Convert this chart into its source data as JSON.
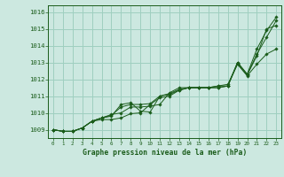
{
  "bg_color": "#cce8e0",
  "grid_color": "#9fcfc0",
  "line_color": "#1a5c1a",
  "xlabel": "Graphe pression niveau de la mer (hPa)",
  "xlim": [
    -0.5,
    23.5
  ],
  "ylim": [
    1008.5,
    1016.4
  ],
  "yticks": [
    1009,
    1010,
    1011,
    1012,
    1013,
    1014,
    1015,
    1016
  ],
  "xticks": [
    0,
    1,
    2,
    3,
    4,
    5,
    6,
    7,
    8,
    9,
    10,
    11,
    12,
    13,
    14,
    15,
    16,
    17,
    18,
    19,
    20,
    21,
    22,
    23
  ],
  "series": [
    [
      1009.0,
      1008.9,
      1008.9,
      1009.1,
      1009.5,
      1009.7,
      1009.8,
      1010.5,
      1010.6,
      1010.1,
      1010.05,
      1011.0,
      1011.1,
      1011.35,
      1011.5,
      1011.5,
      1011.5,
      1011.5,
      1011.6,
      1013.0,
      1012.3,
      1013.8,
      1014.9,
      1015.7
    ],
    [
      1009.0,
      1008.9,
      1008.9,
      1009.1,
      1009.5,
      1009.7,
      1009.9,
      1010.0,
      1010.35,
      1010.35,
      1010.4,
      1010.5,
      1011.2,
      1011.5,
      1011.5,
      1011.5,
      1011.5,
      1011.6,
      1011.6,
      1012.9,
      1012.25,
      1013.4,
      1015.0,
      1015.2
    ],
    [
      1009.0,
      1008.9,
      1008.9,
      1009.1,
      1009.5,
      1009.6,
      1009.6,
      1009.7,
      1009.95,
      1010.0,
      1010.5,
      1010.9,
      1011.0,
      1011.35,
      1011.5,
      1011.5,
      1011.5,
      1011.6,
      1011.7,
      1012.9,
      1012.2,
      1012.9,
      1013.5,
      1013.8
    ],
    [
      1009.0,
      1008.9,
      1008.9,
      1009.1,
      1009.5,
      1009.7,
      1009.85,
      1010.35,
      1010.5,
      1010.5,
      1010.55,
      1011.0,
      1011.15,
      1011.4,
      1011.5,
      1011.5,
      1011.5,
      1011.5,
      1011.6,
      1013.0,
      1012.3,
      1013.5,
      1014.5,
      1015.5
    ]
  ]
}
